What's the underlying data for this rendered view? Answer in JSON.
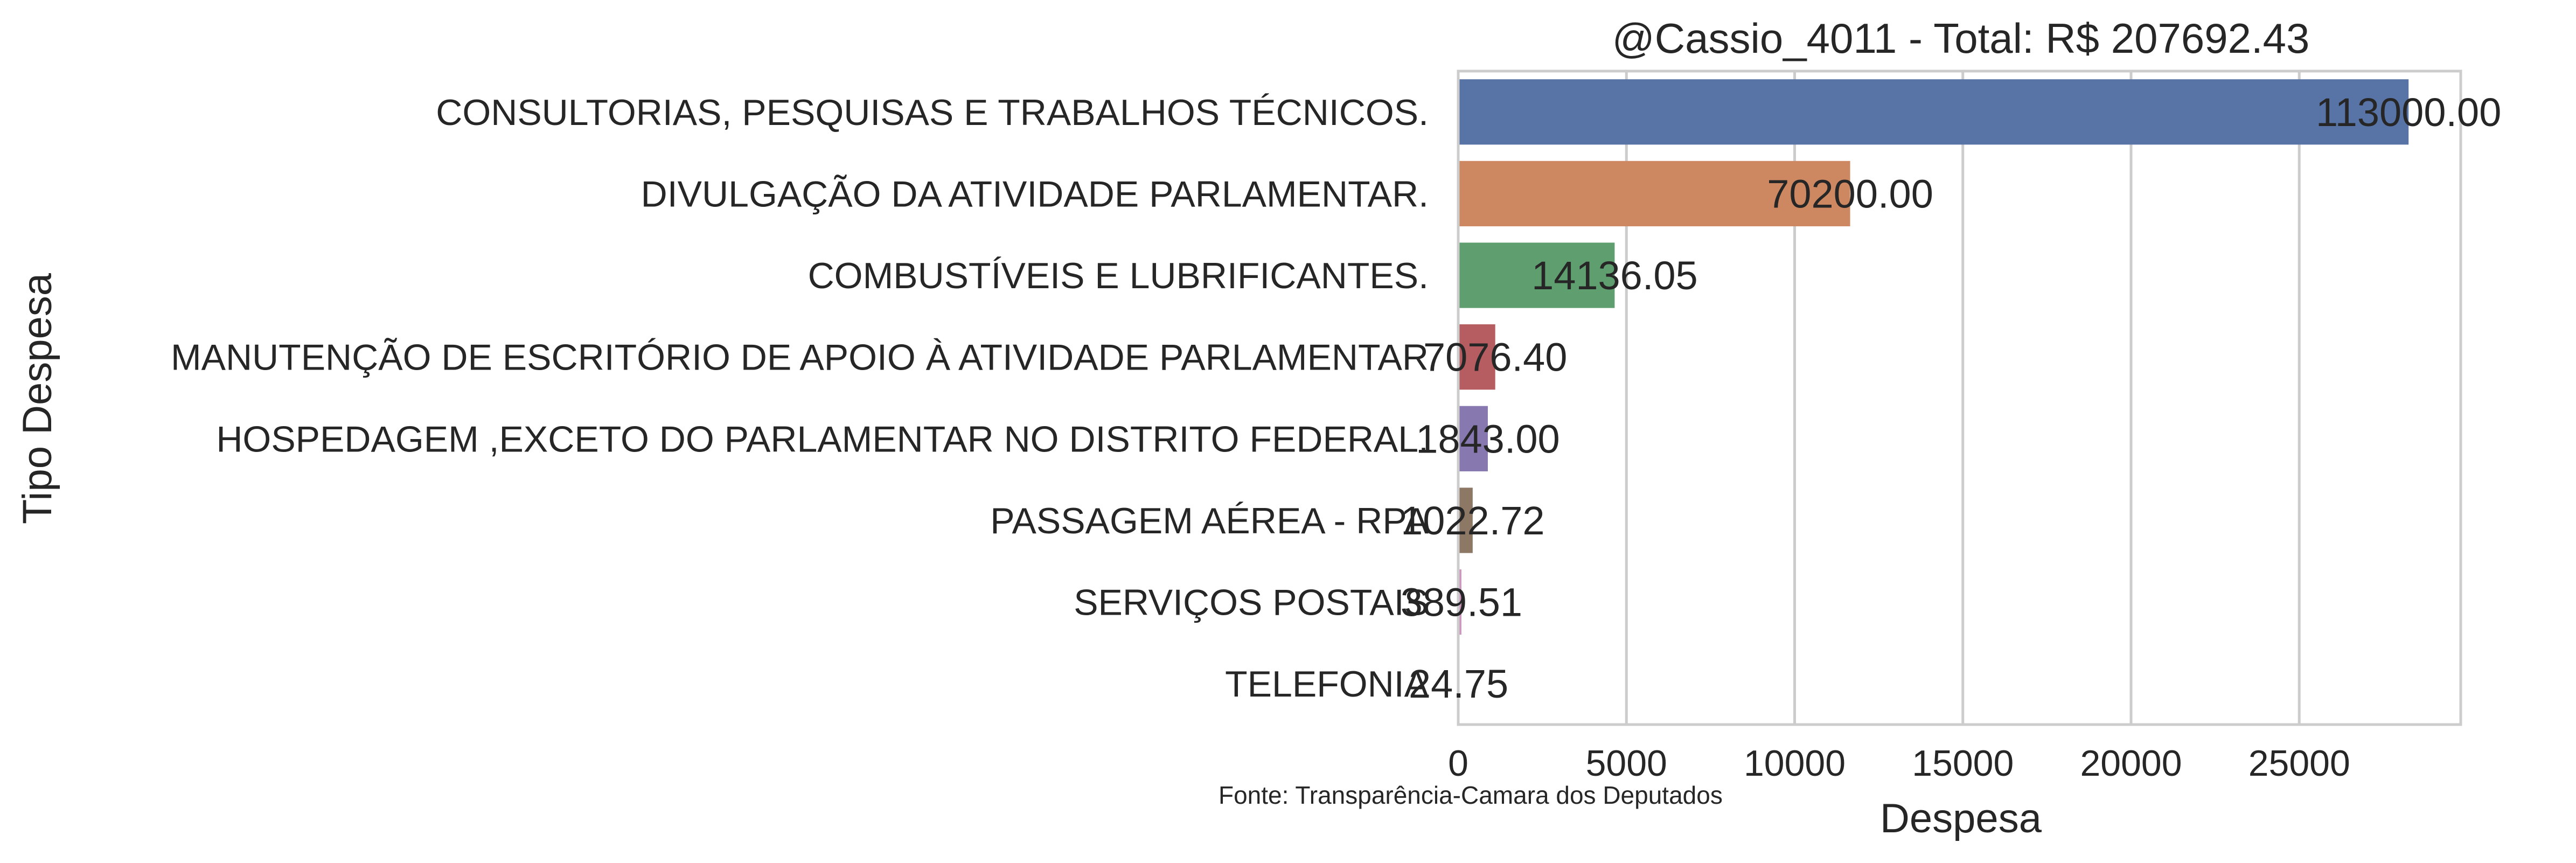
{
  "chart_data": {
    "type": "bar",
    "orientation": "horizontal",
    "title": "@Cassio_4011 - Total: R$ 207692.43",
    "xlabel": "Despesa",
    "ylabel": "Tipo Despesa",
    "xlim": [
      0,
      29800
    ],
    "xticks": [
      0,
      5000,
      10000,
      15000,
      20000,
      25000
    ],
    "grid": "vertical",
    "source_note": "Fonte: Transparência-Camara dos Deputados",
    "categories": [
      "CONSULTORIAS, PESQUISAS E TRABALHOS TÉCNICOS.",
      "DIVULGAÇÃO DA ATIVIDADE PARLAMENTAR.",
      "COMBUSTÍVEIS E LUBRIFICANTES.",
      "MANUTENÇÃO DE ESCRITÓRIO DE APOIO À ATIVIDADE PARLAMENTAR",
      "HOSPEDAGEM ,EXCETO DO PARLAMENTAR NO DISTRITO FEDERAL.",
      "PASSAGEM AÉREA - RPA",
      "SERVIÇOS POSTAIS",
      "TELEFONIA"
    ],
    "values": [
      28250,
      11650,
      4650,
      1100,
      880,
      430,
      95,
      10
    ],
    "value_labels": [
      "113000.00",
      "70200.00",
      "14136.05",
      "7076.40",
      "1843.00",
      "1022.72",
      "389.51",
      "24.75"
    ],
    "colors": [
      "#5874a6",
      "#cd8862",
      "#5f9e6e",
      "#b55d60",
      "#8779b0",
      "#8d7866",
      "#d095bf",
      "#8c8c8c"
    ]
  }
}
